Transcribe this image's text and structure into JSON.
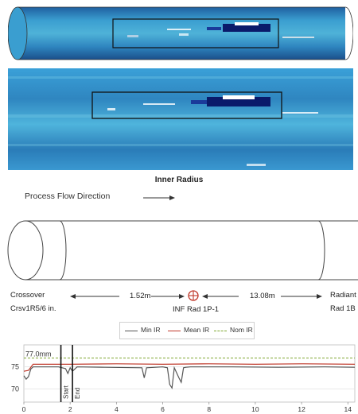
{
  "scan": {
    "caption": "Inner Radius"
  },
  "flow": {
    "label": "Process Flow Direction"
  },
  "markers": {
    "left_label_1": "Crossover",
    "left_label_2": "Crsv1R5/6 in.",
    "left_distance": "1.52m",
    "center_label": "INF Rad 1P-1",
    "right_distance": "13.08m",
    "right_label_1": "Radiant",
    "right_label_2": "Rad 1B"
  },
  "colors": {
    "scan_base": "#2a7fbf",
    "scan_light": "#5fc0e0",
    "min_ir": "#555555",
    "mean_ir": "#c0392b",
    "nom_ir": "#7fa832"
  },
  "chart_data": {
    "type": "line",
    "x_ticks": [
      "0",
      "2",
      "4",
      "6",
      "8",
      "10",
      "12",
      "14"
    ],
    "y_ticks": [
      "70",
      "75"
    ],
    "xlim": [
      0,
      14.3
    ],
    "ylim": [
      67,
      80
    ],
    "nominal_label": "77.0mm",
    "start_label": "Start",
    "end_label": "End",
    "start_x": 1.6,
    "end_x": 2.1,
    "legend": [
      "Min IR",
      "Mean IR",
      "Nom IR"
    ],
    "series": [
      {
        "name": "Min IR",
        "x": [
          0,
          0.1,
          0.2,
          0.3,
          0.4,
          1.5,
          1.8,
          1.9,
          2.0,
          2.1,
          2.3,
          3.5,
          5.1,
          5.2,
          5.3,
          6.0,
          6.2,
          6.3,
          6.4,
          6.5,
          6.7,
          6.8,
          6.9,
          7.0,
          7.2,
          9.0,
          11.0,
          13.0,
          14.3
        ],
        "y": [
          73,
          72.2,
          72.8,
          74.5,
          75.0,
          75.0,
          74.6,
          73.5,
          74.8,
          74.0,
          75.0,
          74.9,
          74.8,
          72.5,
          74.8,
          75.0,
          74.8,
          71.0,
          70.2,
          74.8,
          72.5,
          71.5,
          74.8,
          74.9,
          75.0,
          75.0,
          74.9,
          75.0,
          74.9
        ]
      },
      {
        "name": "Mean IR",
        "x": [
          0,
          0.2,
          0.4,
          2.0,
          4.0,
          6.0,
          8.0,
          10.0,
          12.0,
          14.3
        ],
        "y": [
          74.0,
          74.2,
          75.6,
          75.6,
          75.7,
          75.6,
          75.7,
          75.6,
          75.7,
          75.6
        ]
      },
      {
        "name": "Nom IR",
        "x": [
          0,
          14.3
        ],
        "y": [
          77.0,
          77.0
        ]
      }
    ]
  }
}
